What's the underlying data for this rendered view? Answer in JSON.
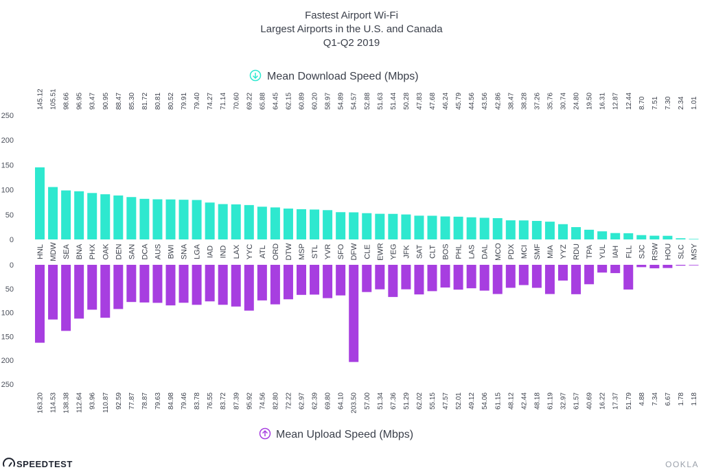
{
  "chart_data": {
    "type": "bar",
    "title_lines": [
      "Fastest Airport Wi-Fi",
      "Largest Airports in the U.S. and Canada",
      "Q1-Q2 2019"
    ],
    "categories": [
      "HNL",
      "MDW",
      "SEA",
      "BNA",
      "PHX",
      "OAK",
      "DEN",
      "SAN",
      "DCA",
      "AUS",
      "BWI",
      "SNA",
      "LGA",
      "IAD",
      "IND",
      "LAX",
      "YYC",
      "ATL",
      "ORD",
      "DTW",
      "MSP",
      "STL",
      "YVR",
      "SFO",
      "DFW",
      "CLE",
      "EWR",
      "YEG",
      "JFK",
      "SAT",
      "CLT",
      "BOS",
      "PHL",
      "LAS",
      "DAL",
      "MCO",
      "PDX",
      "MCI",
      "SMF",
      "MIA",
      "YYZ",
      "RDU",
      "TPA",
      "YUL",
      "IAH",
      "FLL",
      "SJC",
      "RSW",
      "HOU",
      "SLC",
      "MSY"
    ],
    "series": [
      {
        "name": "Mean Download Speed (Mbps)",
        "color": "#2ee8cf",
        "values": [
          145.12,
          105.51,
          98.66,
          96.95,
          93.47,
          90.95,
          88.47,
          85.3,
          81.72,
          80.81,
          80.52,
          79.91,
          79.4,
          74.27,
          71.14,
          70.6,
          69.22,
          65.88,
          64.45,
          62.15,
          60.89,
          60.2,
          58.97,
          54.89,
          54.57,
          52.88,
          51.63,
          51.44,
          50.28,
          47.83,
          47.68,
          46.24,
          45.79,
          44.56,
          43.56,
          42.86,
          38.47,
          38.28,
          37.26,
          35.76,
          30.74,
          24.8,
          19.5,
          16.31,
          12.87,
          12.44,
          8.7,
          7.51,
          7.3,
          2.34,
          1.01
        ],
        "labels": [
          "145.12",
          "105.51",
          "98.66",
          "96.95",
          "93.47",
          "90.95",
          "88.47",
          "85.30",
          "81.72",
          "80.81",
          "80.52",
          "79.91",
          "79.40",
          "74.27",
          "71.14",
          "70.60",
          "69.22",
          "65.88",
          "64.45",
          "62.15",
          "60.89",
          "60.20",
          "58.97",
          "54.89",
          "54.57",
          "52.88",
          "51.63",
          "51.44",
          "50.28",
          "47.83",
          "47.68",
          "46.24",
          "45.79",
          "44.56",
          "43.56",
          "42.86",
          "38.47",
          "38.28",
          "37.26",
          "35.76",
          "30.74",
          "24.80",
          "19.50",
          "16.31",
          "12.87",
          "12.44",
          "8.70",
          "7.51",
          "7.30",
          "2.34",
          "1.01"
        ],
        "ylim": [
          0,
          250
        ],
        "yticks": [
          "0",
          "50",
          "100",
          "150",
          "200",
          "250"
        ]
      },
      {
        "name": "Mean Upload Speed (Mbps)",
        "color": "#a73ee0",
        "values": [
          163.2,
          114.53,
          138.38,
          112.64,
          93.96,
          110.87,
          92.59,
          77.87,
          78.87,
          79.63,
          84.98,
          79.46,
          83.78,
          76.55,
          83.72,
          87.39,
          95.92,
          74.56,
          82.8,
          72.22,
          62.97,
          62.39,
          69.8,
          64.1,
          203.5,
          57.0,
          51.34,
          67.36,
          51.29,
          62.02,
          55.15,
          47.57,
          52.01,
          49.12,
          54.06,
          61.15,
          48.12,
          42.44,
          48.18,
          61.19,
          32.97,
          61.57,
          40.69,
          16.22,
          17.37,
          51.79,
          4.88,
          7.34,
          6.67,
          1.78,
          1.18
        ],
        "labels": [
          "163.20",
          "114.53",
          "138.38",
          "112.64",
          "93.96",
          "110.87",
          "92.59",
          "77.87",
          "78.87",
          "79.63",
          "84.98",
          "79.46",
          "83.78",
          "76.55",
          "83.72",
          "87.39",
          "95.92",
          "74.56",
          "82.80",
          "72.22",
          "62.97",
          "62.39",
          "69.80",
          "64.10",
          "203.50",
          "57.00",
          "51.34",
          "67.36",
          "51.29",
          "62.02",
          "55.15",
          "47.57",
          "52.01",
          "49.12",
          "54.06",
          "61.15",
          "48.12",
          "42.44",
          "48.18",
          "61.19",
          "32.97",
          "61.57",
          "40.69",
          "16.22",
          "17.37",
          "51.79",
          "4.88",
          "7.34",
          "6.67",
          "1.78",
          "1.18"
        ],
        "ylim": [
          0,
          250
        ],
        "yticks": [
          "0",
          "50",
          "100",
          "150",
          "200",
          "250"
        ]
      }
    ],
    "download_icon": "arrow-down-circle-icon",
    "upload_icon": "arrow-up-circle-icon",
    "grid": false
  },
  "branding": {
    "left_logo_text": "SPEEDTEST",
    "right_logo_text": "OOKLA"
  }
}
